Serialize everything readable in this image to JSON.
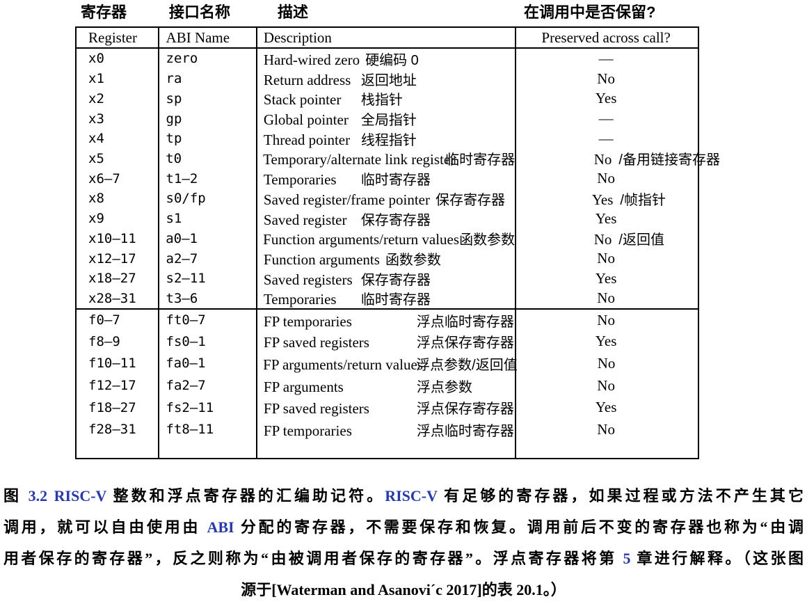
{
  "top_labels": {
    "register": "寄存器",
    "abi": "接口名称",
    "desc": "描述",
    "preserved": "在调用中是否保留?"
  },
  "table": {
    "headers": [
      "Register",
      "ABI Name",
      "Description",
      "Preserved across call?"
    ],
    "rows": [
      {
        "sec": "int",
        "reg": "x0",
        "abi": "zero",
        "en": "Hard-wired zero",
        "zh": "硬编码 0",
        "pv": "—",
        "sfx": ""
      },
      {
        "sec": "int",
        "reg": "x1",
        "abi": "ra",
        "en": "Return address",
        "zh": "返回地址",
        "pv": "No",
        "sfx": ""
      },
      {
        "sec": "int",
        "reg": "x2",
        "abi": "sp",
        "en": "Stack pointer",
        "zh": "栈指针",
        "pv": "Yes",
        "sfx": ""
      },
      {
        "sec": "int",
        "reg": "x3",
        "abi": "gp",
        "en": "Global pointer",
        "zh": "全局指针",
        "pv": "—",
        "sfx": ""
      },
      {
        "sec": "int",
        "reg": "x4",
        "abi": "tp",
        "en": "Thread pointer",
        "zh": "线程指针",
        "pv": "—",
        "sfx": ""
      },
      {
        "sec": "int",
        "reg": "x5",
        "abi": "t0",
        "en": "Temporary/alternate link register",
        "zh": "临时寄存器",
        "pv": "No",
        "sfx": "/备用链接寄存器"
      },
      {
        "sec": "int",
        "reg": "x6–7",
        "abi": "t1–2",
        "en": "Temporaries",
        "zh": "临时寄存器",
        "pv": "No",
        "sfx": ""
      },
      {
        "sec": "int",
        "reg": "x8",
        "abi": "s0/fp",
        "en": "Saved register/frame pointer",
        "zh": "保存寄存器",
        "pv": "Yes",
        "sfx": "/帧指针"
      },
      {
        "sec": "int",
        "reg": "x9",
        "abi": "s1",
        "en": "Saved register",
        "zh": "保存寄存器",
        "pv": "Yes",
        "sfx": ""
      },
      {
        "sec": "int",
        "reg": "x10–11",
        "abi": "a0–1",
        "en": "Function arguments/return values",
        "zh": "函数参数",
        "pv": "No",
        "sfx": "/返回值"
      },
      {
        "sec": "int",
        "reg": "x12–17",
        "abi": "a2–7",
        "en": "Function arguments",
        "zh": "函数参数",
        "pv": "No",
        "sfx": ""
      },
      {
        "sec": "int",
        "reg": "x18–27",
        "abi": "s2–11",
        "en": "Saved registers",
        "zh": "保存寄存器",
        "pv": "Yes",
        "sfx": ""
      },
      {
        "sec": "int",
        "reg": "x28–31",
        "abi": "t3–6",
        "en": "Temporaries",
        "zh": "临时寄存器",
        "pv": "No",
        "sfx": ""
      },
      {
        "sec": "fp",
        "reg": "f0–7",
        "abi": "ft0–7",
        "en": "FP temporaries",
        "zh": "浮点临时寄存器",
        "pv": "No",
        "sfx": ""
      },
      {
        "sec": "fp",
        "reg": "f8–9",
        "abi": "fs0–1",
        "en": "FP saved registers",
        "zh": "浮点保存寄存器",
        "pv": "Yes",
        "sfx": ""
      },
      {
        "sec": "fp",
        "reg": "f10–11",
        "abi": "fa0–1",
        "en": "FP arguments/return values",
        "zh": "浮点参数/返回值",
        "pv": "No",
        "sfx": ""
      },
      {
        "sec": "fp",
        "reg": "f12–17",
        "abi": "fa2–7",
        "en": "FP arguments",
        "zh": "浮点参数",
        "pv": "No",
        "sfx": ""
      },
      {
        "sec": "fp",
        "reg": "f18–27",
        "abi": "fs2–11",
        "en": "FP saved registers",
        "zh": "浮点保存寄存器",
        "pv": "Yes",
        "sfx": ""
      },
      {
        "sec": "fp",
        "reg": "f28–31",
        "abi": "ft8–11",
        "en": "FP temporaries",
        "zh": "浮点临时寄存器",
        "pv": "No",
        "sfx": ""
      }
    ]
  },
  "caption": {
    "link_color": "#2438b8",
    "lines": [
      [
        {
          "t": "图 "
        },
        {
          "t": "3.2 RISC-V",
          "link": true
        },
        {
          "t": " 整数和浮点寄存器的汇编助记符。"
        },
        {
          "t": "RISC-V",
          "link": true
        },
        {
          "t": " 有足够的寄存器，如果过程或方法不产生其它"
        }
      ],
      [
        {
          "t": "调用，就可以自由使用由 "
        },
        {
          "t": "ABI",
          "link": true
        },
        {
          "t": " 分配的寄存器，不需要保存和恢复。调用前后不变的寄存器也称为“由调"
        }
      ],
      [
        {
          "t": "用者保存的寄存器”，反之则称为“由被调用者保存的寄存器”。浮点寄存器将第 "
        },
        {
          "t": "5",
          "link": true
        },
        {
          "t": " 章进行解释。（这张图"
        }
      ],
      [
        {
          "t": "源于[Waterman and Asanovi´c 2017]的表 20.1。）"
        }
      ]
    ]
  }
}
